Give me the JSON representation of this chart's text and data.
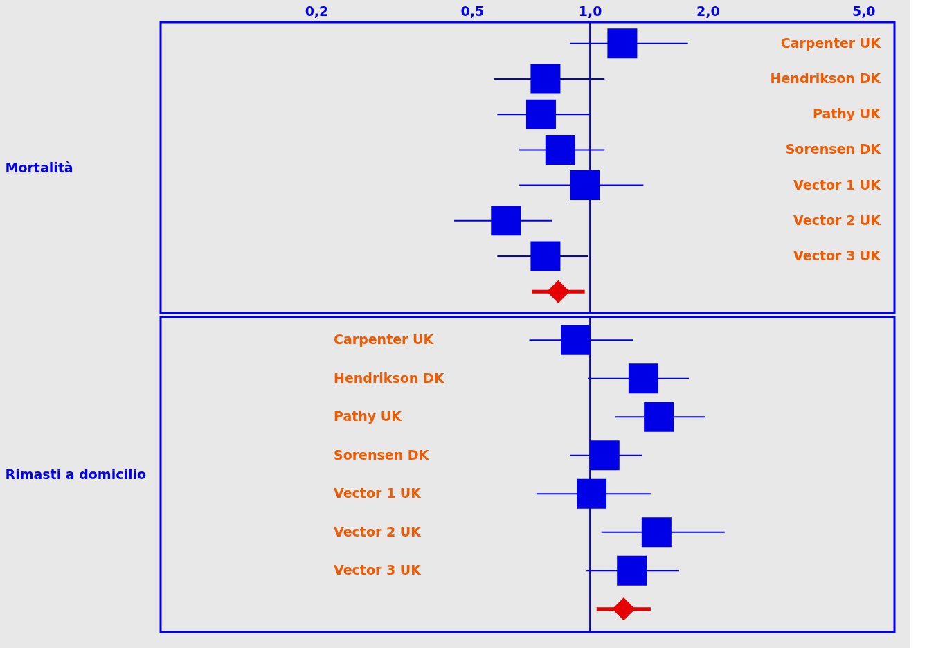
{
  "chart_data": [
    {
      "type": "scatter",
      "ylabel": "Mortalità",
      "orientation": "horizontal",
      "log": "x",
      "grid": false,
      "categories": [
        "Carpenter UK",
        "Hendrikson DK",
        "Pathy UK",
        "Sorensen DK",
        "Vector 1 UK",
        "Vector 2 UK",
        "Vector 3 UK",
        null
      ],
      "xlim": [
        0.08,
        6
      ],
      "xticks": [
        {
          "value": 0.2,
          "label": "0,2"
        },
        {
          "value": 0.5,
          "label": "0,5"
        },
        {
          "value": 1,
          "label": "1,0"
        },
        {
          "value": 2,
          "label": "2,0"
        },
        {
          "value": 5,
          "label": "5,0"
        }
      ],
      "ref_lines": [
        {
          "axis": "x",
          "value": 1,
          "color": "#0000ee"
        }
      ],
      "series": [
        {
          "color": "#0000e6",
          "marker": "square",
          "values": [
            1.21,
            0.77,
            0.75,
            0.84,
            0.97,
            0.61,
            0.77,
            null
          ],
          "errors": [
            [
              0.89,
              1.78
            ],
            [
              0.57,
              1.09
            ],
            [
              0.58,
              1.0
            ],
            [
              0.66,
              1.09
            ],
            [
              0.66,
              1.37
            ],
            [
              0.45,
              0.8
            ],
            [
              0.58,
              0.99
            ],
            null
          ]
        },
        {
          "color": "#e60000",
          "marker": "diamond",
          "values": [
            null,
            null,
            null,
            null,
            null,
            null,
            null,
            0.83
          ],
          "errors": [
            null,
            null,
            null,
            null,
            null,
            null,
            null,
            [
              0.71,
              0.97
            ]
          ]
        }
      ]
    },
    {
      "type": "scatter",
      "ylabel": "Rimasti a domicilio",
      "orientation": "horizontal",
      "log": "x",
      "grid": false,
      "tick_labels": "y",
      "categories": [
        "Carpenter UK",
        "Hendrikson DK",
        "Pathy UK",
        "Sorensen DK",
        "Vector 1 UK",
        "Vector 2 UK",
        "Vector 3 UK",
        null
      ],
      "xlim": [
        0.08,
        6
      ],
      "ref_lines": [
        {
          "axis": "x",
          "value": 1,
          "color": "#0000ee"
        }
      ],
      "series": [
        {
          "color": "#0000e6",
          "marker": "square",
          "values": [
            0.92,
            1.37,
            1.5,
            1.09,
            1.01,
            1.48,
            1.28,
            null
          ],
          "errors": [
            [
              0.7,
              1.29
            ],
            [
              0.99,
              1.79
            ],
            [
              1.16,
              1.97
            ],
            [
              0.89,
              1.36
            ],
            [
              0.73,
              1.43
            ],
            [
              1.07,
              2.21
            ],
            [
              0.98,
              1.69
            ],
            null
          ]
        },
        {
          "color": "#e60000",
          "marker": "diamond",
          "values": [
            null,
            null,
            null,
            null,
            null,
            null,
            null,
            1.22
          ],
          "errors": [
            null,
            null,
            null,
            null,
            null,
            null,
            null,
            [
              1.04,
              1.43
            ]
          ]
        }
      ]
    }
  ]
}
